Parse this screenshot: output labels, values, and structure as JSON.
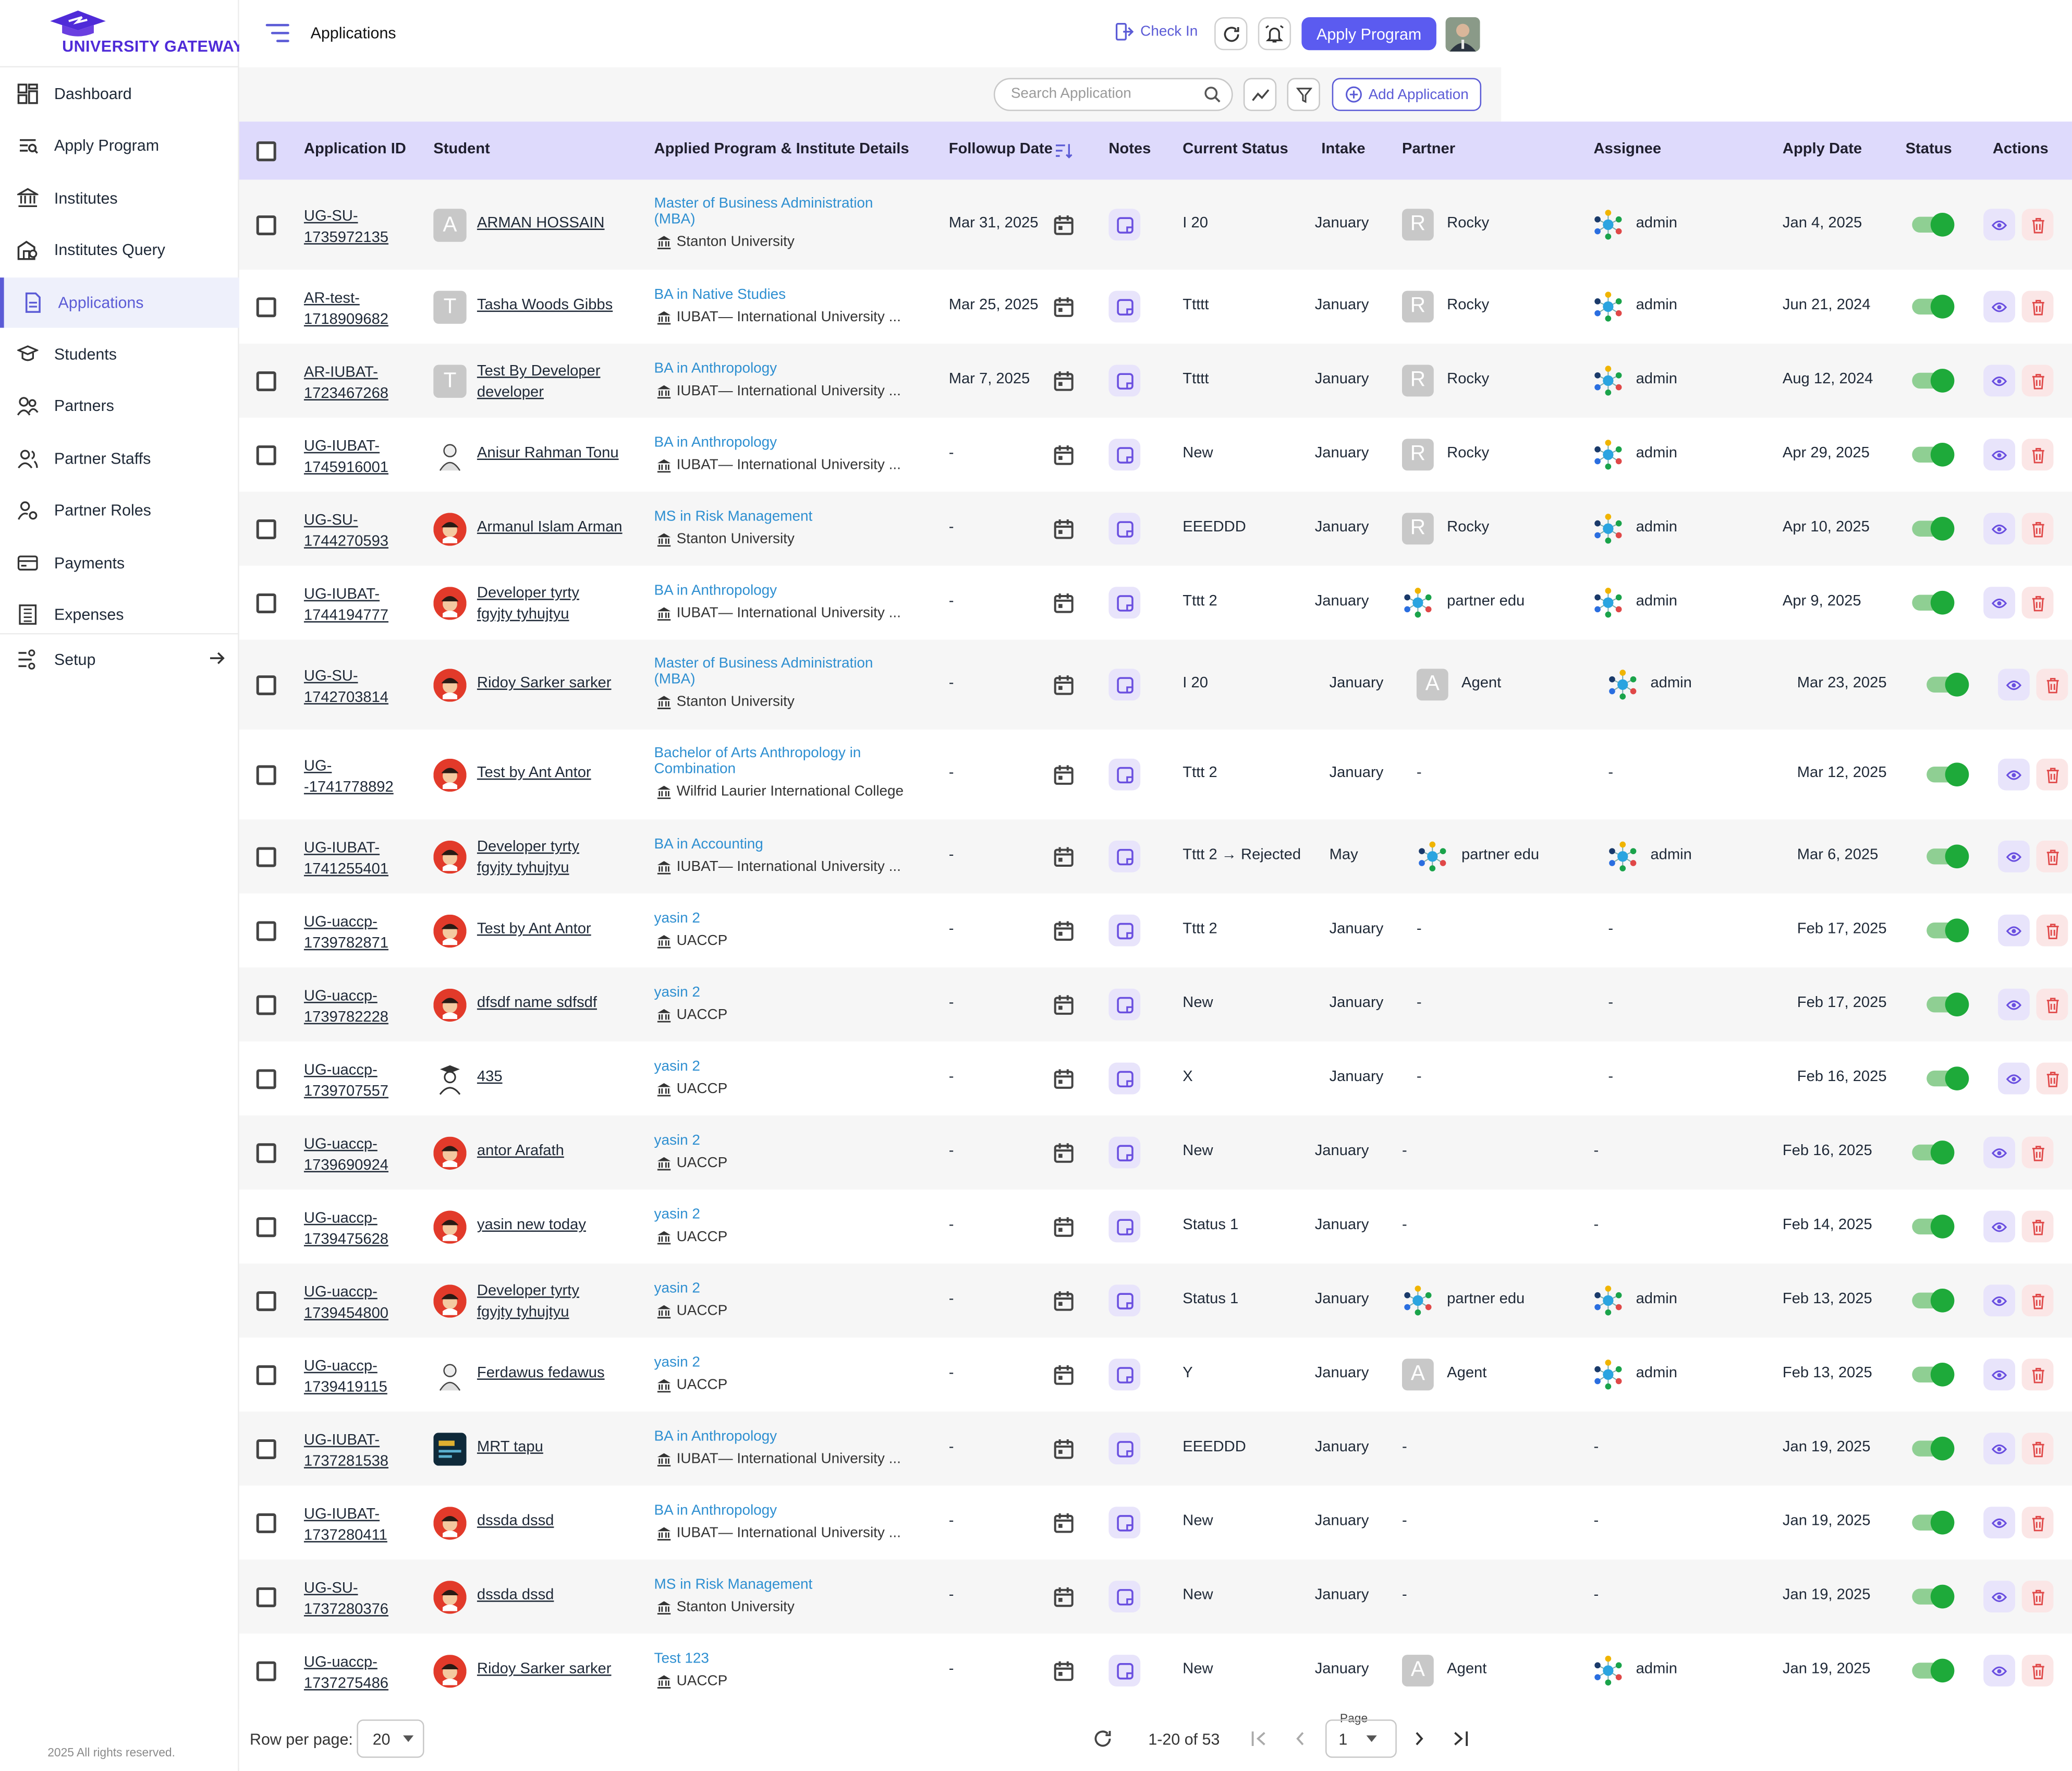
{
  "brand": {
    "name": "UNIVERSITY GATEWAY",
    "color": "#4f2bd8"
  },
  "sidebar": {
    "items": [
      {
        "label": "Dashboard",
        "icon": "dashboard-icon"
      },
      {
        "label": "Apply Program",
        "icon": "apply-program-icon"
      },
      {
        "label": "Institutes",
        "icon": "institutes-icon"
      },
      {
        "label": "Institutes Query",
        "icon": "institutes-query-icon"
      },
      {
        "label": "Applications",
        "icon": "applications-icon",
        "active": true
      },
      {
        "label": "Students",
        "icon": "students-icon"
      },
      {
        "label": "Partners",
        "icon": "partners-icon"
      },
      {
        "label": "Partner Staffs",
        "icon": "partner-staffs-icon"
      },
      {
        "label": "Partner Roles",
        "icon": "partner-roles-icon"
      },
      {
        "label": "Payments",
        "icon": "payments-icon"
      },
      {
        "label": "Expenses",
        "icon": "expenses-icon"
      },
      {
        "label": "Setup",
        "icon": "setup-icon"
      }
    ],
    "footer": "2025 All rights reserved."
  },
  "header": {
    "title": "Applications",
    "check_in": "Check In",
    "apply_program": "Apply Program",
    "accent": "#5b5bf0"
  },
  "toolbar": {
    "search_placeholder": "Search Application",
    "add_application": "Add Application"
  },
  "table": {
    "columns": [
      "Application ID",
      "Student",
      "Applied Program & Institute Details",
      "Followup Date",
      "Notes",
      "Current Status",
      "Intake",
      "Partner",
      "Assignee",
      "Apply Date",
      "Status",
      "Actions"
    ],
    "rows": [
      {
        "id1": "UG-SU-",
        "id2": "1735972135",
        "student": [
          "ARMAN HOSSAIN"
        ],
        "avatar": "letter-A",
        "program": "Master of Business Administration (MBA)",
        "institute": "Stanton University",
        "followup": "Mar 31, 2025",
        "status": "I 20",
        "intake": "January",
        "partner": "Rocky",
        "partner_av": "letter-R",
        "assignee": "admin",
        "apply_date": "Jan 4, 2025"
      },
      {
        "id1": "AR-test-",
        "id2": "1718909682",
        "student": [
          "Tasha Woods Gibbs"
        ],
        "avatar": "letter-T",
        "program": "BA in Native Studies",
        "institute": "IUBAT— International University ...",
        "followup": "Mar 25, 2025",
        "status": "Ttttt",
        "intake": "January",
        "partner": "Rocky",
        "partner_av": "letter-R",
        "assignee": "admin",
        "apply_date": "Jun 21, 2024"
      },
      {
        "id1": "AR-IUBAT-",
        "id2": "1723467268",
        "student": [
          "Test By Developer",
          "developer"
        ],
        "avatar": "letter-T",
        "program": "BA in Anthropology",
        "institute": "IUBAT— International University ...",
        "followup": "Mar 7, 2025",
        "status": "Ttttt",
        "intake": "January",
        "partner": "Rocky",
        "partner_av": "letter-R",
        "assignee": "admin",
        "apply_date": "Aug 12, 2024"
      },
      {
        "id1": "UG-IUBAT-",
        "id2": "1745916001",
        "student": [
          "Anisur Rahman Tonu"
        ],
        "avatar": "sketch",
        "program": "BA in Anthropology",
        "institute": "IUBAT— International University ...",
        "followup": "-",
        "status": "New",
        "intake": "January",
        "partner": "Rocky",
        "partner_av": "letter-R",
        "assignee": "admin",
        "apply_date": "Apr 29, 2025"
      },
      {
        "id1": "UG-SU-",
        "id2": "1744270593",
        "student": [
          "Armanul Islam Arman"
        ],
        "avatar": "red",
        "program": "MS in Risk Management",
        "institute": "Stanton University",
        "followup": "-",
        "status": "EEEDDD",
        "intake": "January",
        "partner": "Rocky",
        "partner_av": "letter-R",
        "assignee": "admin",
        "apply_date": "Apr 10, 2025"
      },
      {
        "id1": "UG-IUBAT-",
        "id2": "1744194777",
        "student": [
          "Developer tyrty",
          "fgyjty tyhujtyu"
        ],
        "avatar": "red",
        "program": "BA in Anthropology",
        "institute": "IUBAT— International University ...",
        "followup": "-",
        "status": "Tttt 2",
        "intake": "January",
        "partner": "partner edu",
        "partner_av": "network",
        "assignee": "admin",
        "apply_date": "Apr 9, 2025"
      },
      {
        "id1": "UG-SU-",
        "id2": "1742703814",
        "student": [
          "Ridoy Sarker sarker"
        ],
        "avatar": "red",
        "program": "Master of Business Administration (MBA)",
        "institute": "Stanton University",
        "followup": "-",
        "status": "I 20",
        "intake": "January",
        "partner": "Agent",
        "partner_av": "letter-A",
        "assignee": "admin",
        "apply_date": "Mar 23, 2025"
      },
      {
        "id1": "UG-",
        "id2": "-1741778892",
        "student": [
          "Test by Ant Antor"
        ],
        "avatar": "red",
        "program": "Bachelor of Arts Anthropology in Combination",
        "institute": "Wilfrid Laurier International College",
        "followup": "-",
        "status": "Tttt 2",
        "intake": "January",
        "partner": "-",
        "partner_av": "none",
        "assignee": "-",
        "apply_date": "Mar 12, 2025"
      },
      {
        "id1": "UG-IUBAT-",
        "id2": "1741255401",
        "student": [
          "Developer tyrty",
          "fgyjty tyhujtyu"
        ],
        "avatar": "red",
        "program": "BA in Accounting",
        "institute": "IUBAT— International University ...",
        "followup": "-",
        "status": "Tttt 2 → Rejected",
        "intake": "May",
        "partner": "partner edu",
        "partner_av": "network",
        "assignee": "admin",
        "apply_date": "Mar 6, 2025"
      },
      {
        "id1": "UG-uaccp-",
        "id2": "1739782871",
        "student": [
          "Test by Ant Antor"
        ],
        "avatar": "red",
        "program": "yasin 2",
        "institute": "UACCP",
        "followup": "-",
        "status": "Tttt 2",
        "intake": "January",
        "partner": "-",
        "partner_av": "none",
        "assignee": "-",
        "apply_date": "Feb 17, 2025"
      },
      {
        "id1": "UG-uaccp-",
        "id2": "1739782228",
        "student": [
          "dfsdf name sdfsdf"
        ],
        "avatar": "red",
        "program": "yasin 2",
        "institute": "UACCP",
        "followup": "-",
        "status": "New",
        "intake": "January",
        "partner": "-",
        "partner_av": "none",
        "assignee": "-",
        "apply_date": "Feb 17, 2025"
      },
      {
        "id1": "UG-uaccp-",
        "id2": "1739707557",
        "student": [
          "435"
        ],
        "avatar": "grad",
        "program": "yasin 2",
        "institute": "UACCP",
        "followup": "-",
        "status": "X",
        "intake": "January",
        "partner": "-",
        "partner_av": "none",
        "assignee": "-",
        "apply_date": "Feb 16, 2025"
      },
      {
        "id1": "UG-uaccp-",
        "id2": "1739690924",
        "student": [
          "antor Arafath"
        ],
        "avatar": "red",
        "program": "yasin 2",
        "institute": "UACCP",
        "followup": "-",
        "status": "New",
        "intake": "January",
        "partner": "-",
        "partner_av": "none",
        "assignee": "-",
        "apply_date": "Feb 16, 2025"
      },
      {
        "id1": "UG-uaccp-",
        "id2": "1739475628",
        "student": [
          "yasin new today"
        ],
        "avatar": "red",
        "program": "yasin 2",
        "institute": "UACCP",
        "followup": "-",
        "status": "Status 1",
        "intake": "January",
        "partner": "-",
        "partner_av": "none",
        "assignee": "-",
        "apply_date": "Feb 14, 2025"
      },
      {
        "id1": "UG-uaccp-",
        "id2": "1739454800",
        "student": [
          "Developer tyrty",
          "fgyjty tyhujtyu"
        ],
        "avatar": "red",
        "program": "yasin 2",
        "institute": "UACCP",
        "followup": "-",
        "status": "Status 1",
        "intake": "January",
        "partner": "partner edu",
        "partner_av": "network",
        "assignee": "admin",
        "apply_date": "Feb 13, 2025"
      },
      {
        "id1": "UG-uaccp-",
        "id2": "1739419115",
        "student": [
          "Ferdawus fedawus"
        ],
        "avatar": "sketch",
        "program": "yasin 2",
        "institute": "UACCP",
        "followup": "-",
        "status": "Y",
        "intake": "January",
        "partner": "Agent",
        "partner_av": "letter-A",
        "assignee": "admin",
        "apply_date": "Feb 13, 2025"
      },
      {
        "id1": "UG-IUBAT-",
        "id2": "1737281538",
        "student": [
          "MRT tapu"
        ],
        "avatar": "dark",
        "program": "BA in Anthropology",
        "institute": "IUBAT— International University ...",
        "followup": "-",
        "status": "EEEDDD",
        "intake": "January",
        "partner": "-",
        "partner_av": "none",
        "assignee": "-",
        "apply_date": "Jan 19, 2025"
      },
      {
        "id1": "UG-IUBAT-",
        "id2": "1737280411",
        "student": [
          "dssda dssd"
        ],
        "avatar": "red",
        "program": "BA in Anthropology",
        "institute": "IUBAT— International University ...",
        "followup": "-",
        "status": "New",
        "intake": "January",
        "partner": "-",
        "partner_av": "none",
        "assignee": "-",
        "apply_date": "Jan 19, 2025"
      },
      {
        "id1": "UG-SU-",
        "id2": "1737280376",
        "student": [
          "dssda dssd"
        ],
        "avatar": "red",
        "program": "MS in Risk Management",
        "institute": "Stanton University",
        "followup": "-",
        "status": "New",
        "intake": "January",
        "partner": "-",
        "partner_av": "none",
        "assignee": "-",
        "apply_date": "Jan 19, 2025"
      },
      {
        "id1": "UG-uaccp-",
        "id2": "1737275486",
        "student": [
          "Ridoy Sarker sarker"
        ],
        "avatar": "red",
        "program": "Test 123",
        "institute": "UACCP",
        "followup": "-",
        "status": "New",
        "intake": "January",
        "partner": "Agent",
        "partner_av": "letter-A",
        "assignee": "admin",
        "apply_date": "Jan 19, 2025"
      }
    ]
  },
  "pagination": {
    "rows_per_page_label": "Row per page:",
    "rows_per_page": "20",
    "range": "1-20 of 53",
    "page_label": "Page",
    "page": "1"
  },
  "colors": {
    "header_bg": "#dedafc",
    "link": "#2e8fd1",
    "toggle_on": "#1eaa3a",
    "delete": "#e04848"
  }
}
